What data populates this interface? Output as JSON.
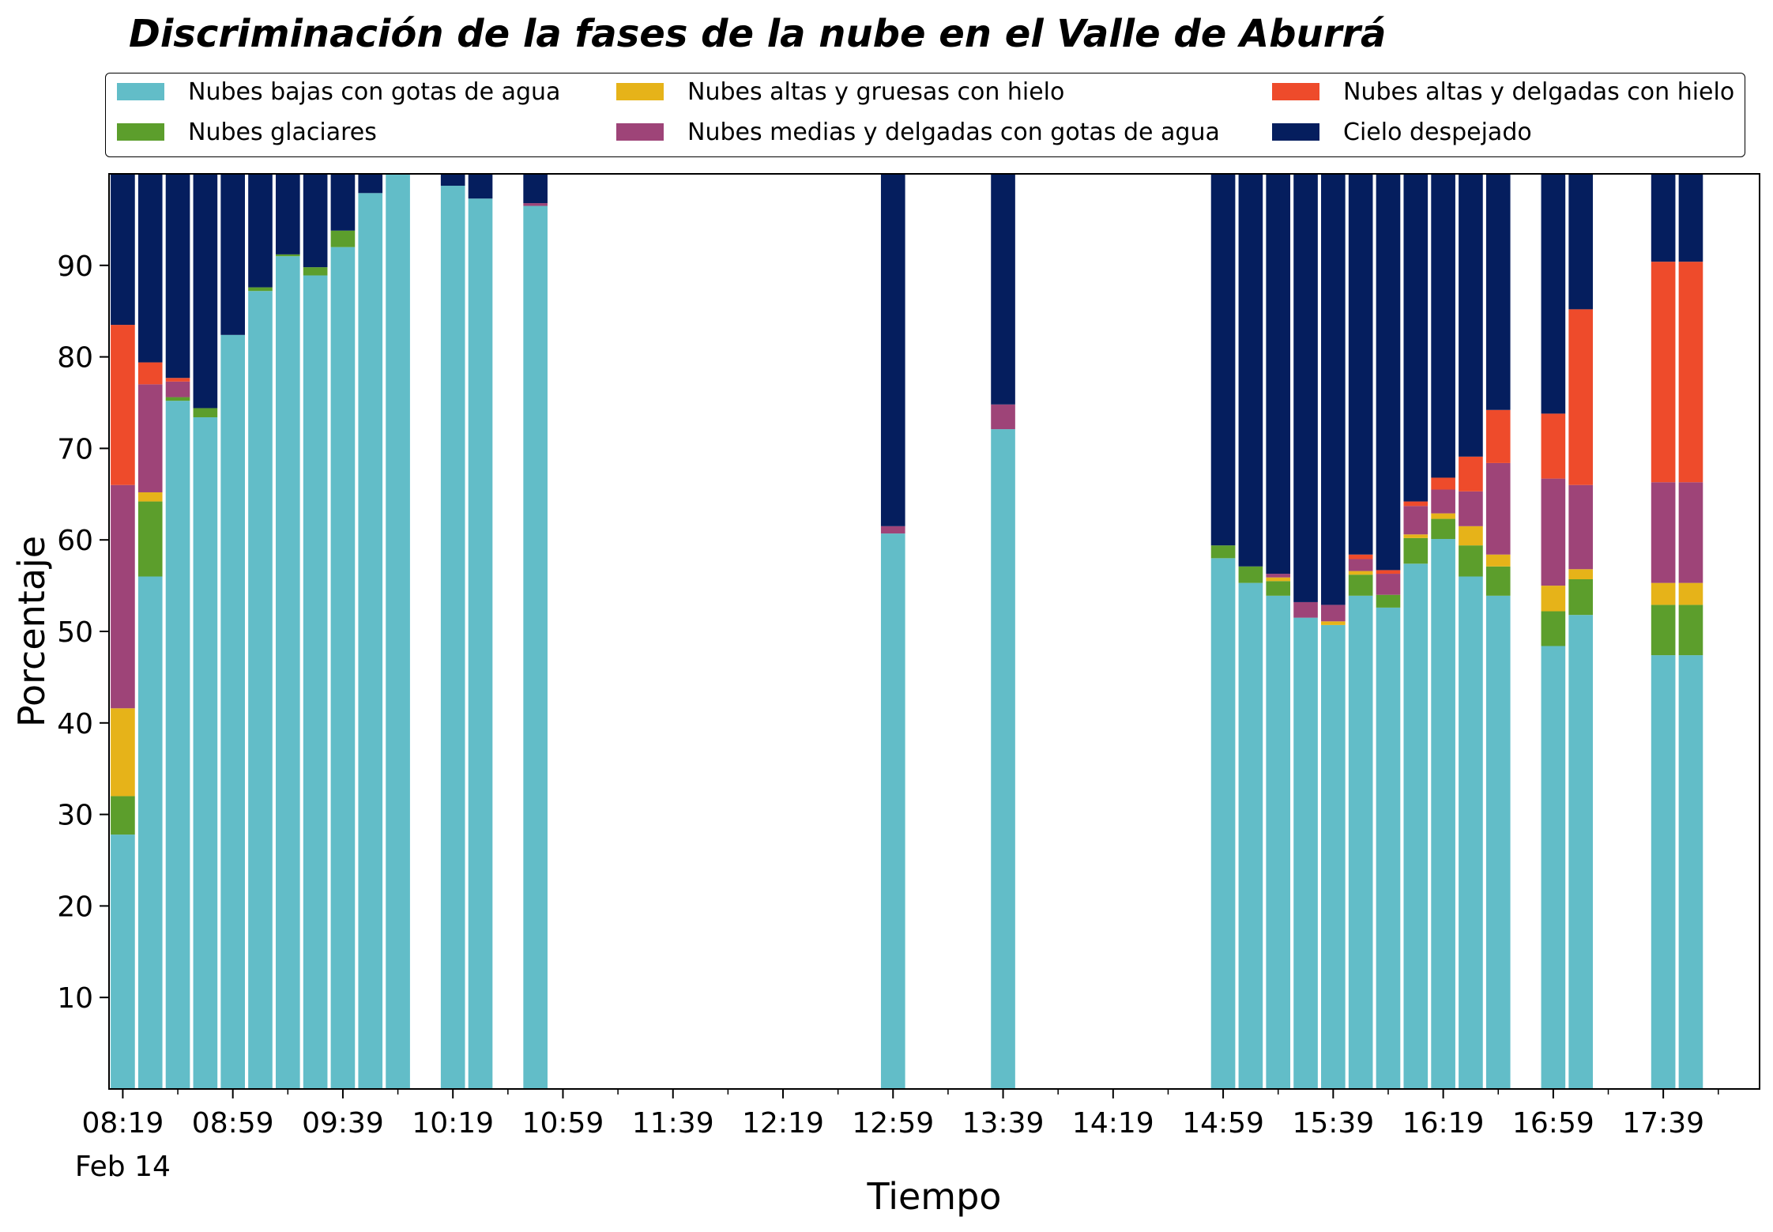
{
  "chart_data": {
    "type": "bar",
    "stacked": true,
    "title": "Discriminación de la fases de la nube en el Valle de Aburrá",
    "xlabel": "Tiempo",
    "ylabel": "Porcentaje",
    "ylim": [
      0,
      100
    ],
    "yticks": [
      10,
      20,
      30,
      40,
      50,
      60,
      70,
      80,
      90
    ],
    "xlim": [
      "08:14",
      "18:14"
    ],
    "x_tick_labels": [
      "08:19",
      "08:59",
      "09:39",
      "10:19",
      "10:59",
      "11:39",
      "12:19",
      "12:59",
      "13:39",
      "14:19",
      "14:59",
      "15:39",
      "16:19",
      "16:59",
      "17:39"
    ],
    "x_date_label": "Feb 14",
    "legend_position": "top",
    "grid": false,
    "x": [
      "08:19",
      "08:29",
      "08:39",
      "08:49",
      "08:59",
      "09:09",
      "09:19",
      "09:29",
      "09:39",
      "09:49",
      "09:59",
      "10:19",
      "10:29",
      "10:49",
      "12:59",
      "13:39",
      "14:59",
      "15:09",
      "15:19",
      "15:29",
      "15:39",
      "15:49",
      "15:59",
      "16:09",
      "16:19",
      "16:29",
      "16:39",
      "16:59",
      "17:09",
      "17:39",
      "17:49"
    ],
    "series": [
      {
        "name": "Nubes bajas con gotas de agua",
        "color": "#62BDC8",
        "values": [
          27.8,
          56.0,
          75.2,
          73.4,
          82.4,
          87.2,
          91.0,
          88.9,
          92.0,
          97.9,
          100.0,
          98.7,
          97.3,
          96.5,
          60.7,
          72.1,
          58.0,
          55.3,
          53.9,
          51.5,
          50.7,
          53.9,
          52.6,
          57.4,
          60.1,
          56.0,
          53.9,
          48.4,
          51.8,
          47.4,
          47.4
        ]
      },
      {
        "name": "Nubes glaciares",
        "color": "#5C9E2C",
        "values": [
          4.2,
          8.2,
          0.4,
          1.0,
          0,
          0.4,
          0.2,
          0.9,
          1.8,
          0,
          0,
          0,
          0,
          0,
          0,
          0,
          1.4,
          1.8,
          1.6,
          0,
          0,
          2.3,
          1.4,
          2.8,
          2.2,
          3.4,
          3.2,
          3.8,
          3.9,
          5.5,
          5.5
        ]
      },
      {
        "name": "Nubes altas y gruesas con hielo",
        "color": "#E6B319",
        "values": [
          9.6,
          1.0,
          0,
          0,
          0,
          0,
          0,
          0,
          0,
          0,
          0,
          0,
          0,
          0,
          0,
          0,
          0,
          0,
          0.4,
          0,
          0.4,
          0.4,
          0,
          0.4,
          0.6,
          2.1,
          1.3,
          2.8,
          1.1,
          2.4,
          2.4
        ]
      },
      {
        "name": "Nubes medias y delgadas con gotas de agua",
        "color": "#9E4478",
        "values": [
          24.4,
          11.8,
          1.7,
          0,
          0,
          0,
          0,
          0,
          0,
          0,
          0,
          0,
          0,
          0.3,
          0.8,
          2.7,
          0,
          0,
          0.4,
          1.7,
          1.8,
          1.3,
          2.3,
          3.1,
          2.6,
          3.8,
          10.0,
          11.7,
          9.2,
          11.0,
          11.0
        ]
      },
      {
        "name": "Nubes altas y delgadas con hielo",
        "color": "#EE4B2B",
        "values": [
          17.5,
          2.4,
          0.4,
          0,
          0,
          0,
          0,
          0,
          0,
          0,
          0,
          0,
          0,
          0,
          0,
          0,
          0,
          0,
          0,
          0,
          0,
          0.5,
          0.4,
          0.5,
          1.3,
          3.8,
          5.8,
          7.1,
          19.2,
          24.1,
          24.1
        ]
      },
      {
        "name": "Cielo despejado",
        "color": "#051E5E",
        "values": [
          16.5,
          20.6,
          22.3,
          25.6,
          17.6,
          12.4,
          8.8,
          10.2,
          6.2,
          2.1,
          0,
          1.3,
          2.7,
          3.2,
          38.5,
          25.2,
          40.6,
          42.9,
          43.7,
          46.8,
          47.1,
          41.6,
          43.3,
          35.8,
          33.2,
          30.9,
          25.8,
          26.2,
          14.8,
          9.6,
          9.6
        ]
      }
    ]
  },
  "legend_layout": {
    "columns": 3
  },
  "colors": {
    "axes": "#000000",
    "background": "#ffffff"
  }
}
